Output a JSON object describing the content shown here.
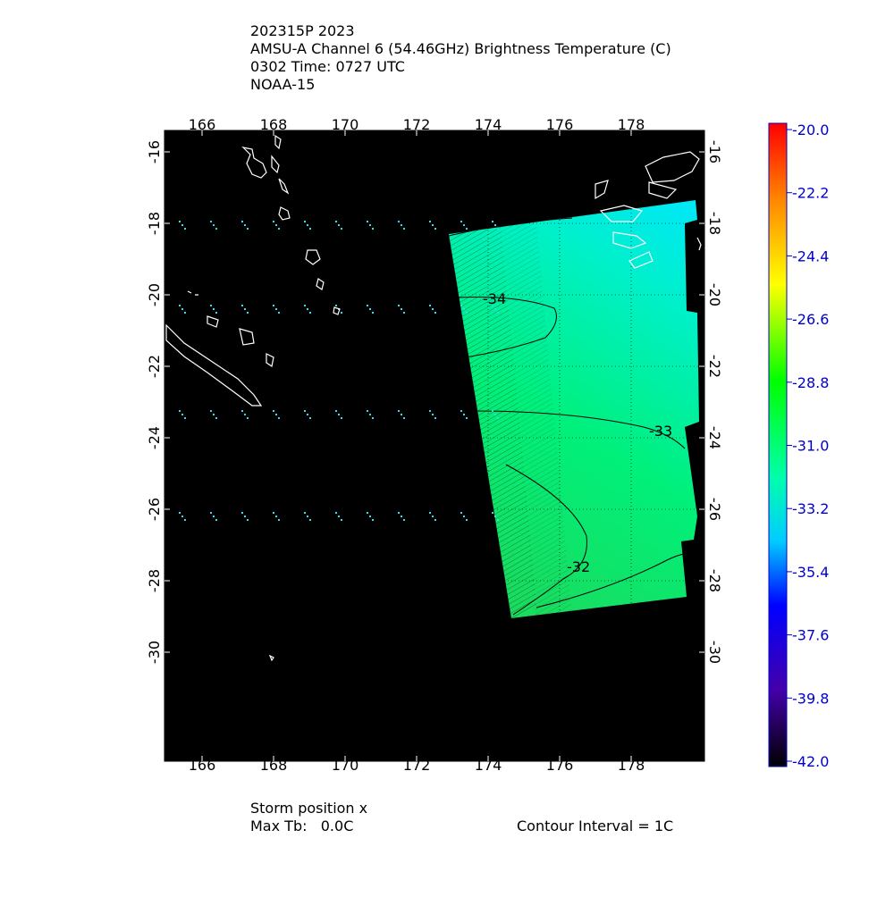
{
  "header": {
    "lines": [
      "202315P 2023",
      "AMSU-A Channel 6 (54.46GHz) Brightness Temperature (C)",
      "0302 Time: 0727 UTC",
      "NOAA-15"
    ]
  },
  "map": {
    "lon_ticks": [
      166,
      168,
      170,
      172,
      174,
      176,
      178
    ],
    "lat_ticks": [
      -16,
      -18,
      -20,
      -22,
      -24,
      -26,
      -28,
      -30
    ],
    "contour_labels": [
      "-34",
      "-33",
      "-32"
    ]
  },
  "colorbar": {
    "labels": [
      "-20.0",
      "-22.2",
      "-24.4",
      "-26.6",
      "-28.8",
      "-31.0",
      "-33.2",
      "-35.4",
      "-37.6",
      "-39.8",
      "-42.0"
    ]
  },
  "footer": {
    "storm_position": "Storm position x",
    "max_tb": "Max Tb:   0.0C",
    "contour_interval": "Contour Interval = 1C"
  }
}
